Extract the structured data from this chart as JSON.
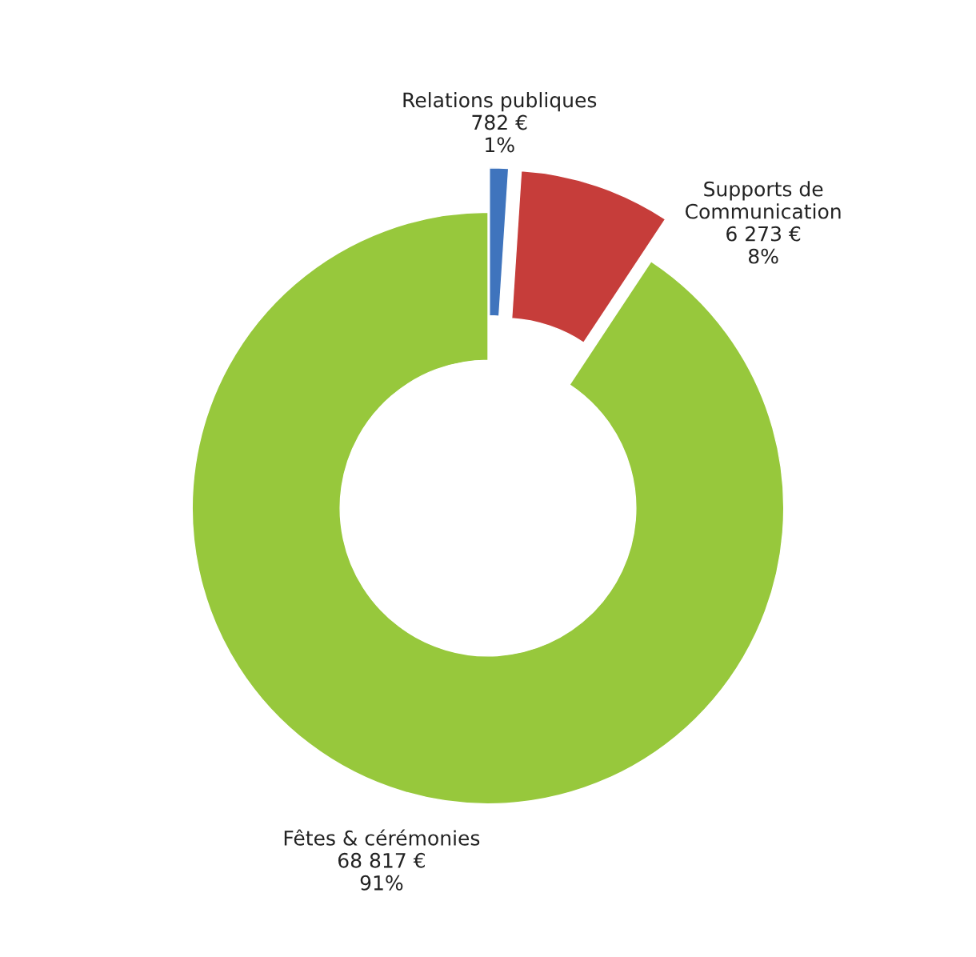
{
  "chart_data": {
    "type": "donut",
    "categories": [
      "Relations publiques",
      "Supports de\nCommunication",
      "Fêtes & cérémonies"
    ],
    "values": [
      782,
      6273,
      68817
    ],
    "colors": [
      "#3f74bd",
      "#c63d3a",
      "#97c83c"
    ],
    "value_labels": [
      "782 €\n1%",
      "6 273 €\n8%",
      "68 817 €\n91%"
    ],
    "legend": false
  }
}
